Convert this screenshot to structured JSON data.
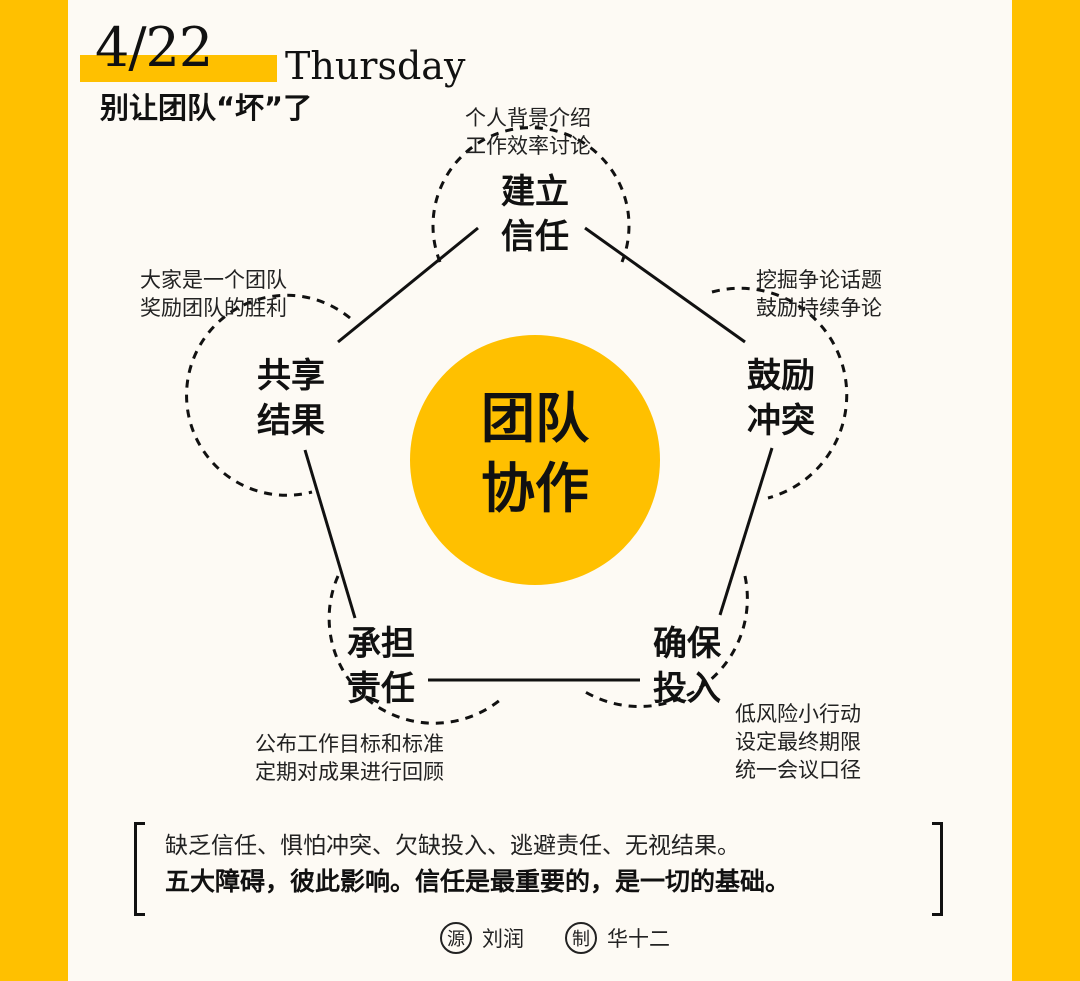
{
  "header": {
    "date": "4/22",
    "weekday": "Thursday",
    "subtitle": "别让团队“坏”了"
  },
  "center": {
    "line1": "团队",
    "line2": "协作"
  },
  "colors": {
    "accent": "#FFC000",
    "background": "#fdfaf4",
    "ink": "#111111"
  },
  "nodes": [
    {
      "line1": "建立",
      "line2": "信任",
      "notes": [
        "个人背景介绍",
        "工作效率讨论"
      ]
    },
    {
      "line1": "鼓励",
      "line2": "冲突",
      "notes": [
        "挖掘争论话题",
        "鼓励持续争论"
      ]
    },
    {
      "line1": "确保",
      "line2": "投入",
      "notes": [
        "低风险小行动",
        "设定最终期限",
        "统一会议口径"
      ]
    },
    {
      "line1": "承担",
      "line2": "责任",
      "notes": [
        "公布工作目标和标准",
        "定期对成果进行回顾"
      ]
    },
    {
      "line1": "共享",
      "line2": "结果",
      "notes": [
        "大家是一个团队",
        "奖励团队的胜利"
      ]
    }
  ],
  "summary": {
    "line1": "缺乏信任、惧怕冲突、欠缺投入、逃避责任、无视结果。",
    "line2": "五大障碍，彼此影响。信任是最重要的，是一切的基础。"
  },
  "credits": {
    "source_mark": "源",
    "source_name": "刘润",
    "maker_mark": "制",
    "maker_name": "华十二"
  }
}
